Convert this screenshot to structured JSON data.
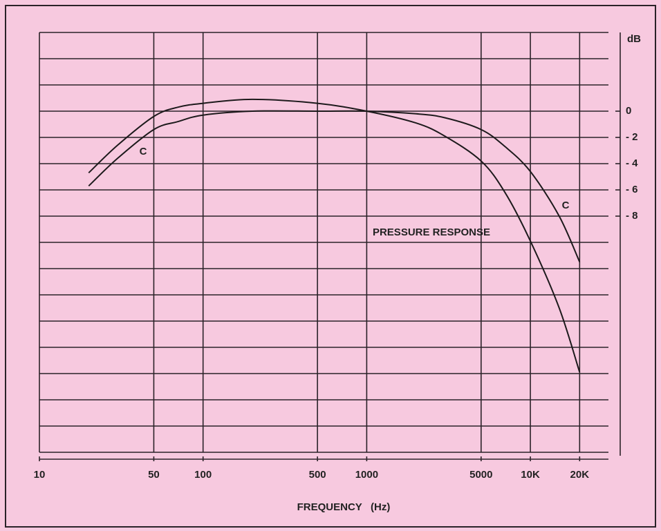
{
  "chart_data": {
    "type": "line",
    "xlabel": "FREQUENCY   (Hz)",
    "ylabel": "dB",
    "log_x": true,
    "grid": true,
    "xlim": [
      10,
      30000
    ],
    "xticks": [
      10,
      50,
      100,
      500,
      1000,
      5000,
      {
        "value": 10000,
        "label": "10K"
      },
      {
        "value": 20000,
        "label": "20K"
      }
    ],
    "ylim": [
      -26,
      6
    ],
    "yticks": [
      0,
      {
        "value": -2,
        "label": "- 2"
      },
      {
        "value": -4,
        "label": "- 4"
      },
      {
        "value": -6,
        "label": "- 6"
      },
      {
        "value": -8,
        "label": "- 8"
      }
    ],
    "ygrid": [
      6,
      4,
      2,
      0,
      -2,
      -4,
      -6,
      -8,
      -10,
      -12,
      -14,
      -16,
      -18,
      -20,
      -22,
      -24,
      -26
    ],
    "x": [
      20,
      30,
      50,
      70,
      100,
      200,
      500,
      1000,
      2000,
      3000,
      5000,
      7000,
      10000,
      15000,
      20000
    ],
    "series": [
      {
        "name": "C",
        "color": "#1d1a1c",
        "values": [
          -5.7,
          -3.6,
          -1.4,
          -0.8,
          -0.3,
          0,
          0,
          0,
          -0.2,
          -0.5,
          -1.4,
          -2.7,
          -4.6,
          -8,
          -11.5
        ]
      },
      {
        "name": "PRESSURE RESPONSE",
        "color": "#1d1a1c",
        "values": [
          -4.7,
          -2.6,
          -0.4,
          0.3,
          0.6,
          0.9,
          0.6,
          0,
          -0.9,
          -1.9,
          -3.8,
          -6.2,
          -9.9,
          -15,
          -19.9
        ]
      }
    ]
  }
}
